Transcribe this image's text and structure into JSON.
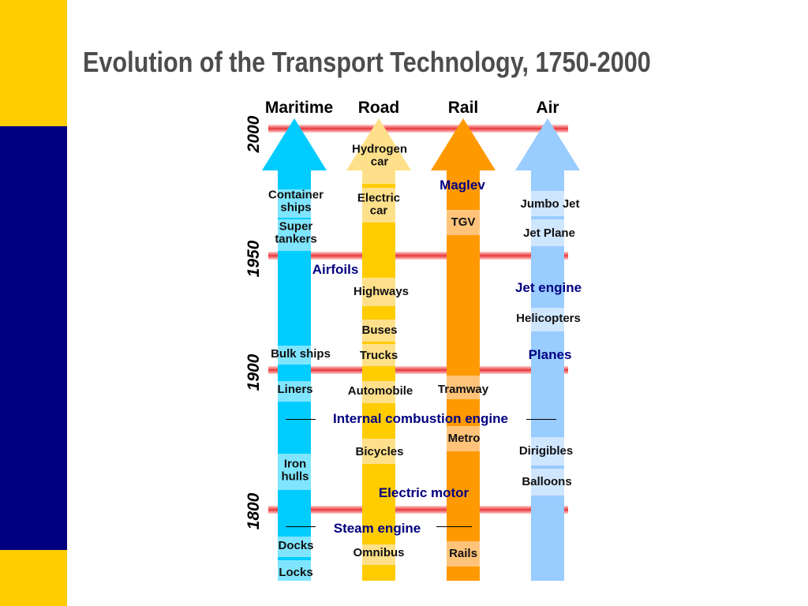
{
  "slide": {
    "title": "Evolution of the Transport Technology, 1750-2000",
    "colors": {
      "sidebar_yellow": "#FFCC00",
      "sidebar_blue": "#000080",
      "title": "#4D4D4D",
      "line_red": "#E8383B"
    }
  },
  "columns": [
    {
      "name": "Maritime",
      "color": "#00CCFF",
      "band_color": "#7FE5FF"
    },
    {
      "name": "Road",
      "color": "#FFCC00",
      "band_color": "#FFE08A"
    },
    {
      "name": "Rail",
      "color": "#FF9900",
      "band_color": "#FFC47A"
    },
    {
      "name": "Air",
      "color": "#99CCFF",
      "band_color": "#CFE6FF"
    }
  ],
  "years": [
    "2000",
    "1950",
    "1900",
    "1800"
  ],
  "labels": {
    "maritime": [
      "Container ships",
      "Super tankers",
      "Bulk ships",
      "Liners",
      "Iron hulls",
      "Docks",
      "Locks"
    ],
    "road": [
      "Hydrogen car",
      "Electric car",
      "Highways",
      "Buses",
      "Trucks",
      "Automobile",
      "Bicycles",
      "Omnibus"
    ],
    "rail": [
      "Maglev",
      "TGV",
      "Tramway",
      "Metro",
      "Rails"
    ],
    "air": [
      "Jumbo Jet",
      "Jet Plane",
      "Helicopters",
      "Dirigibles",
      "Balloons"
    ]
  },
  "technologies": {
    "airfoils": "Airfoils",
    "jet_engine": "Jet engine",
    "planes": "Planes",
    "internal_combustion": "Internal combustion engine",
    "electric_motor": "Electric motor",
    "steam_engine": "Steam engine"
  }
}
